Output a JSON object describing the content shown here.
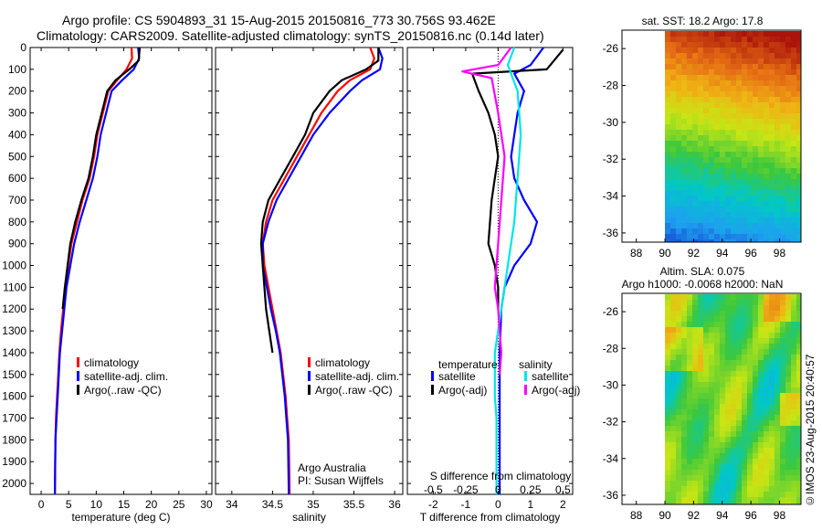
{
  "header": {
    "line1": "Argo profile: CS 5904893_31 15-Aug-2015 20150816_773 30.756S 93.462E",
    "line2": "Climatology: CARS2009. Satellite-adjusted climatology: synTS_20150816.nc (0.14d later)"
  },
  "credit": "©IMOS 23-Aug-2015 20:40:57",
  "colors": {
    "climatology": "#ff0000",
    "satellite": "#0000ff",
    "argo": "#000000",
    "cyan": "#00e5e5",
    "magenta": "#ff00ff"
  },
  "chart_data": [
    {
      "type": "line",
      "xlabel": "temperature (deg C)",
      "ylim": [
        2050,
        0
      ],
      "xlim": [
        -2,
        31
      ],
      "xticks": [
        0,
        5,
        10,
        15,
        20,
        25,
        30
      ],
      "yticks": [
        0,
        100,
        200,
        300,
        400,
        500,
        600,
        700,
        800,
        900,
        1000,
        1100,
        1200,
        1300,
        1400,
        1500,
        1600,
        1700,
        1800,
        1900,
        2000
      ],
      "legend": [
        "climatology",
        "satellite-adj. clim.",
        "Argo(..raw -QC)"
      ],
      "series": [
        {
          "name": "climatology",
          "color": "#ff0000",
          "x": [
            16.4,
            16.5,
            15.5,
            13.8,
            12.2,
            11.2,
            10.2,
            9.6,
            8.8,
            7.5,
            6.5,
            5.5,
            4.9,
            4.4,
            4.0,
            3.6,
            3.3,
            3.1,
            2.9,
            2.7,
            2.6,
            2.5
          ],
          "y": [
            0,
            50,
            100,
            150,
            200,
            300,
            400,
            500,
            600,
            700,
            800,
            900,
            1000,
            1100,
            1200,
            1300,
            1400,
            1500,
            1600,
            1700,
            1800,
            2050
          ]
        },
        {
          "name": "satellite-adj. clim.",
          "color": "#0000ff",
          "x": [
            17.6,
            17.8,
            16.8,
            14.7,
            12.8,
            11.8,
            10.8,
            10.2,
            9.4,
            8.2,
            7.0,
            6.0,
            5.3,
            4.6,
            4.2,
            3.8,
            3.4,
            3.2,
            3.0,
            2.8,
            2.6,
            2.5
          ],
          "y": [
            0,
            50,
            100,
            150,
            200,
            300,
            400,
            500,
            600,
            700,
            800,
            900,
            1000,
            1100,
            1200,
            1300,
            1400,
            1500,
            1600,
            1700,
            1800,
            2050
          ]
        },
        {
          "name": "Argo(..raw -QC)",
          "color": "#000000",
          "x": [
            17.9,
            17.7,
            16.0,
            13.5,
            12.0,
            11.0,
            10.0,
            9.4,
            8.6,
            7.3,
            6.2,
            5.3,
            4.8,
            4.3,
            3.9
          ],
          "y": [
            0,
            60,
            100,
            150,
            200,
            300,
            400,
            500,
            600,
            700,
            800,
            900,
            1000,
            1100,
            1200
          ]
        }
      ]
    },
    {
      "type": "line",
      "xlabel": "salinity",
      "ylim": [
        2050,
        0
      ],
      "xlim": [
        33.8,
        36.1
      ],
      "xticks": [
        34,
        34.5,
        35,
        35.5,
        36
      ],
      "legend": [
        "climatology",
        "satellite-adj. clim.",
        "Argo(..raw -QC)"
      ],
      "annotation": [
        "Argo Australia",
        "PI: Susan Wijffels"
      ],
      "series": [
        {
          "name": "climatology",
          "color": "#ff0000",
          "x": [
            35.7,
            35.75,
            35.7,
            35.45,
            35.3,
            35.1,
            34.95,
            34.8,
            34.65,
            34.5,
            34.42,
            34.38,
            34.4,
            34.45,
            34.5,
            34.55,
            34.6,
            34.63,
            34.66,
            34.68,
            34.7,
            34.71
          ],
          "y": [
            0,
            50,
            100,
            150,
            200,
            300,
            400,
            500,
            600,
            700,
            800,
            900,
            1000,
            1100,
            1200,
            1300,
            1400,
            1500,
            1600,
            1700,
            1800,
            2050
          ]
        },
        {
          "name": "satellite-adj. clim.",
          "color": "#0000ff",
          "x": [
            35.8,
            35.85,
            35.82,
            35.6,
            35.45,
            35.2,
            35.0,
            34.85,
            34.7,
            34.55,
            34.45,
            34.38,
            34.38,
            34.43,
            34.48,
            34.54,
            34.59,
            34.62,
            34.65,
            34.67,
            34.69,
            34.7
          ],
          "y": [
            0,
            50,
            100,
            150,
            200,
            300,
            400,
            500,
            600,
            700,
            800,
            900,
            1000,
            1100,
            1200,
            1300,
            1400,
            1500,
            1600,
            1700,
            1800,
            2050
          ]
        },
        {
          "name": "Argo(..raw -QC)",
          "color": "#000000",
          "x": [
            35.8,
            35.8,
            35.65,
            35.35,
            35.2,
            35.0,
            34.9,
            34.75,
            34.6,
            34.45,
            34.38,
            34.36,
            34.38,
            34.4,
            34.42,
            34.46,
            34.5
          ],
          "y": [
            0,
            60,
            100,
            150,
            200,
            300,
            400,
            500,
            600,
            700,
            800,
            900,
            1000,
            1100,
            1200,
            1300,
            1400
          ]
        }
      ]
    },
    {
      "type": "line",
      "xlabel": "T difference from climatology",
      "xlabel_top": "S difference from climatology",
      "ylim": [
        2050,
        0
      ],
      "xlim": [
        -2.8,
        2.3
      ],
      "xticks": [
        -2,
        -1,
        0,
        1,
        2
      ],
      "xticks_top_labels": [
        "-0.5",
        "-0.25",
        "0",
        "0.25",
        "0.5"
      ],
      "xticks_top_pos": [
        -2,
        -1,
        0,
        1,
        2
      ],
      "legend": {
        "temperature": [
          "satellite",
          "Argo(-adj)"
        ],
        "salinity": [
          "satellite",
          "Argo(-adj)"
        ]
      },
      "series": [
        {
          "name": "temperature satellite",
          "color": "#0000ff",
          "x": [
            1.4,
            1.0,
            0.5,
            0.8,
            0.6,
            0.5,
            0.4,
            0.5,
            0.8,
            1.2,
            1.0,
            0.5,
            0.2,
            0.1,
            0.05,
            0.05,
            0.05,
            0.05,
            0.05,
            0.05,
            0.05
          ],
          "y": [
            0,
            80,
            120,
            200,
            300,
            400,
            500,
            600,
            700,
            800,
            900,
            1000,
            1100,
            1200,
            1400,
            1500,
            1600,
            1700,
            1800,
            1900,
            2050
          ]
        },
        {
          "name": "temperature Argo(-adj)",
          "color": "#000000",
          "x": [
            2.0,
            1.5,
            -0.8,
            -0.6,
            -0.3,
            -0.1,
            0.0,
            -0.1,
            -0.2,
            -0.3,
            -0.1,
            0.0,
            0.0
          ],
          "y": [
            10,
            100,
            120,
            200,
            300,
            400,
            500,
            600,
            700,
            900,
            1000,
            1100,
            1200
          ]
        },
        {
          "name": "salinity satellite",
          "color": "#00e5e5",
          "x": [
            0.5,
            0.3,
            0.6,
            0.7,
            0.6,
            0.5,
            0.3,
            0.1,
            -0.1,
            -0.1,
            -0.1,
            -0.05,
            -0.05,
            -0.05,
            -0.05
          ],
          "y": [
            0,
            80,
            200,
            400,
            600,
            800,
            1000,
            1200,
            1400,
            1500,
            1600,
            1700,
            1800,
            1900,
            2050
          ]
        },
        {
          "name": "salinity Argo(-adj)",
          "color": "#ff00ff",
          "x": [
            0.4,
            0.0,
            -1.1,
            -0.2,
            0.0,
            0.2,
            0.1,
            0.0,
            -0.1,
            0.0,
            0.05,
            0.1,
            0.05
          ],
          "y": [
            0,
            80,
            110,
            140,
            300,
            500,
            700,
            900,
            1100,
            1200,
            1300,
            1400,
            1500
          ]
        }
      ]
    },
    {
      "type": "heatmap",
      "title": "sat. SST: 18.2 Argo: 17.8",
      "xlim": [
        87,
        99.5
      ],
      "ylim": [
        -36.5,
        -25
      ],
      "xticks": [
        88,
        90,
        92,
        94,
        96,
        98
      ],
      "yticks": [
        -26,
        -28,
        -30,
        -32,
        -34,
        -36
      ]
    },
    {
      "type": "heatmap",
      "title": "Altim. SLA: 0.075",
      "subtitle": "Argo h1000: -0.0068 h2000: NaN",
      "xlim": [
        87,
        99.5
      ],
      "ylim": [
        -36.5,
        -25
      ],
      "xticks": [
        88,
        90,
        92,
        94,
        96,
        98
      ],
      "yticks": [
        -26,
        -28,
        -30,
        -32,
        -34,
        -36
      ]
    }
  ]
}
